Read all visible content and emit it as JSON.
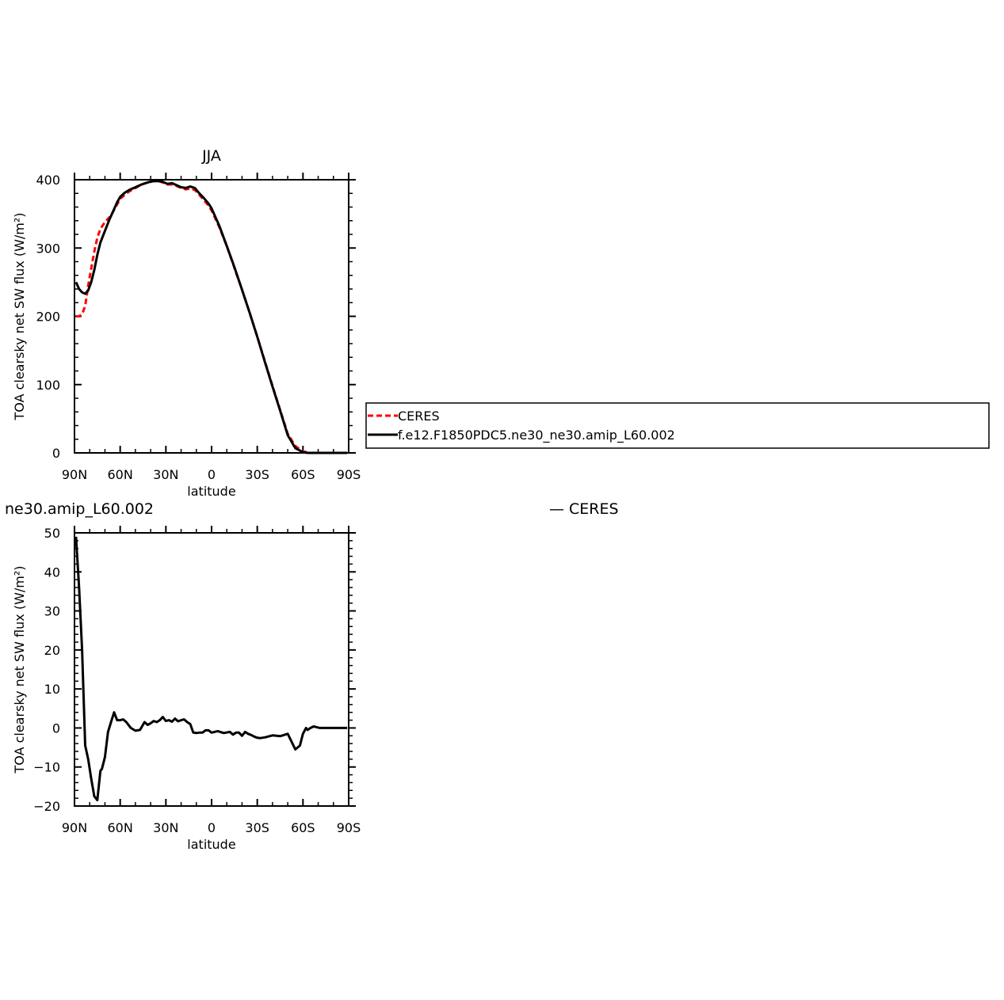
{
  "chart_data": [
    {
      "type": "line",
      "title": "JJA",
      "xlabel": "latitude",
      "ylabel": "TOA clearsky net SW flux (W/m²)",
      "xlim": [
        90,
        -90
      ],
      "ylim": [
        0,
        400
      ],
      "xticks": [
        90,
        60,
        30,
        0,
        -30,
        -60,
        -90
      ],
      "xtick_labels": [
        "90N",
        "60N",
        "30N",
        "0",
        "30S",
        "60S",
        "90S"
      ],
      "yticks": [
        0,
        100,
        200,
        300,
        400
      ],
      "ytick_labels": [
        "0",
        "100",
        "200",
        "300",
        "400"
      ],
      "legend": "right",
      "series": [
        {
          "name": "CERES",
          "color": "#ff0000",
          "dash": "dashed",
          "x": [
            89,
            87,
            85,
            83,
            81,
            79,
            77,
            75,
            73,
            70,
            67,
            65,
            62,
            60,
            57,
            54,
            50,
            46,
            42,
            38,
            35,
            32,
            29,
            26,
            23,
            20,
            17,
            14,
            11,
            8,
            5,
            2,
            0,
            -5,
            -10,
            -15,
            -20,
            -25,
            -30,
            -35,
            -40,
            -45,
            -50,
            -55,
            -60,
            -63,
            -65,
            -68,
            -71,
            -75,
            -80,
            -85,
            -89
          ],
          "y": [
            200,
            200,
            203,
            215,
            245,
            270,
            295,
            315,
            328,
            338,
            345,
            352,
            364,
            372,
            378,
            383,
            388,
            393,
            396,
            398,
            398,
            396,
            393,
            393,
            391,
            388,
            386,
            387,
            385,
            378,
            370,
            362,
            355,
            331,
            303,
            271,
            239,
            205,
            170,
            134,
            98,
            63,
            28,
            10,
            2,
            1,
            0,
            0,
            0,
            0,
            0,
            0,
            0
          ]
        },
        {
          "name": "f.e12.F1850PDC5.ne30_ne30.amip_L60.002",
          "color": "#000000",
          "dash": "solid",
          "x": [
            89,
            87,
            85,
            83,
            81,
            79,
            77,
            75,
            73,
            70,
            67,
            65,
            62,
            60,
            57,
            54,
            50,
            46,
            42,
            38,
            35,
            32,
            29,
            26,
            23,
            20,
            17,
            14,
            11,
            8,
            5,
            2,
            0,
            -5,
            -10,
            -15,
            -20,
            -25,
            -30,
            -35,
            -40,
            -45,
            -50,
            -55,
            -60,
            -63,
            -65,
            -68,
            -71,
            -75,
            -80,
            -85,
            -89
          ],
          "y": [
            250,
            240,
            235,
            233,
            238,
            250,
            268,
            290,
            308,
            325,
            342,
            352,
            367,
            375,
            381,
            385,
            389,
            393,
            396,
            398,
            398,
            397,
            394,
            395,
            392,
            389,
            388,
            390,
            388,
            380,
            373,
            365,
            358,
            333,
            303,
            272,
            239,
            205,
            170,
            133,
            97,
            62,
            26,
            7,
            1,
            0,
            0,
            0,
            0,
            0,
            0,
            0,
            0
          ]
        }
      ]
    },
    {
      "type": "line",
      "title": "ne30.amip_L60.002",
      "title_right": "— CERES",
      "xlabel": "latitude",
      "ylabel": "TOA clearsky net SW flux (W/m²)",
      "xlim": [
        90,
        -90
      ],
      "ylim": [
        -20,
        50
      ],
      "xticks": [
        90,
        60,
        30,
        0,
        -30,
        -60,
        -90
      ],
      "xtick_labels": [
        "90N",
        "60N",
        "30N",
        "0",
        "30S",
        "60S",
        "90S"
      ],
      "yticks": [
        -20,
        -10,
        0,
        10,
        20,
        30,
        40,
        50
      ],
      "ytick_labels": [
        "−20",
        "−10",
        "0",
        "10",
        "20",
        "30",
        "40",
        "50"
      ],
      "series": [
        {
          "color": "#000000",
          "dash": "solid",
          "x": [
            89,
            87,
            85,
            83,
            81,
            79,
            77,
            75,
            73,
            72,
            70,
            68,
            66,
            64,
            62,
            60,
            58,
            56,
            53,
            50,
            47,
            44,
            42,
            40,
            38,
            36,
            34,
            32,
            30,
            28,
            26,
            24,
            22,
            20,
            18,
            16,
            14,
            12,
            10,
            8,
            6,
            4,
            2,
            0,
            -4,
            -8,
            -12,
            -14,
            -16,
            -18,
            -20,
            -22,
            -24,
            -26,
            -28,
            -30,
            -32,
            -35,
            -40,
            -45,
            -50,
            -55,
            -58,
            -60,
            -62,
            -63,
            -65,
            -67,
            -69,
            -71,
            -73,
            -75,
            -80,
            -85,
            -89
          ],
          "y": [
            49,
            36,
            20,
            -4.5,
            -8,
            -13,
            -17.5,
            -18.5,
            -11,
            -10.5,
            -7.5,
            -1,
            1.5,
            4,
            2,
            2,
            2.2,
            1.5,
            0,
            -0.7,
            -0.5,
            1.5,
            0.8,
            1.2,
            1.8,
            1.5,
            2,
            2.8,
            1.8,
            2,
            1.6,
            2.4,
            1.7,
            2,
            2.2,
            1.5,
            1,
            -1.2,
            -1.3,
            -1.2,
            -1.2,
            -0.6,
            -0.6,
            -1.2,
            -0.8,
            -1.3,
            -1,
            -1.7,
            -1.2,
            -1.2,
            -2,
            -1,
            -1.5,
            -1.8,
            -2.2,
            -2.5,
            -2.6,
            -2.4,
            -1.9,
            -2.1,
            -1.5,
            -5.5,
            -4.5,
            -1.5,
            0,
            -0.5,
            0,
            0.4,
            0.2,
            0,
            0,
            0,
            0,
            0,
            0
          ]
        }
      ]
    }
  ]
}
